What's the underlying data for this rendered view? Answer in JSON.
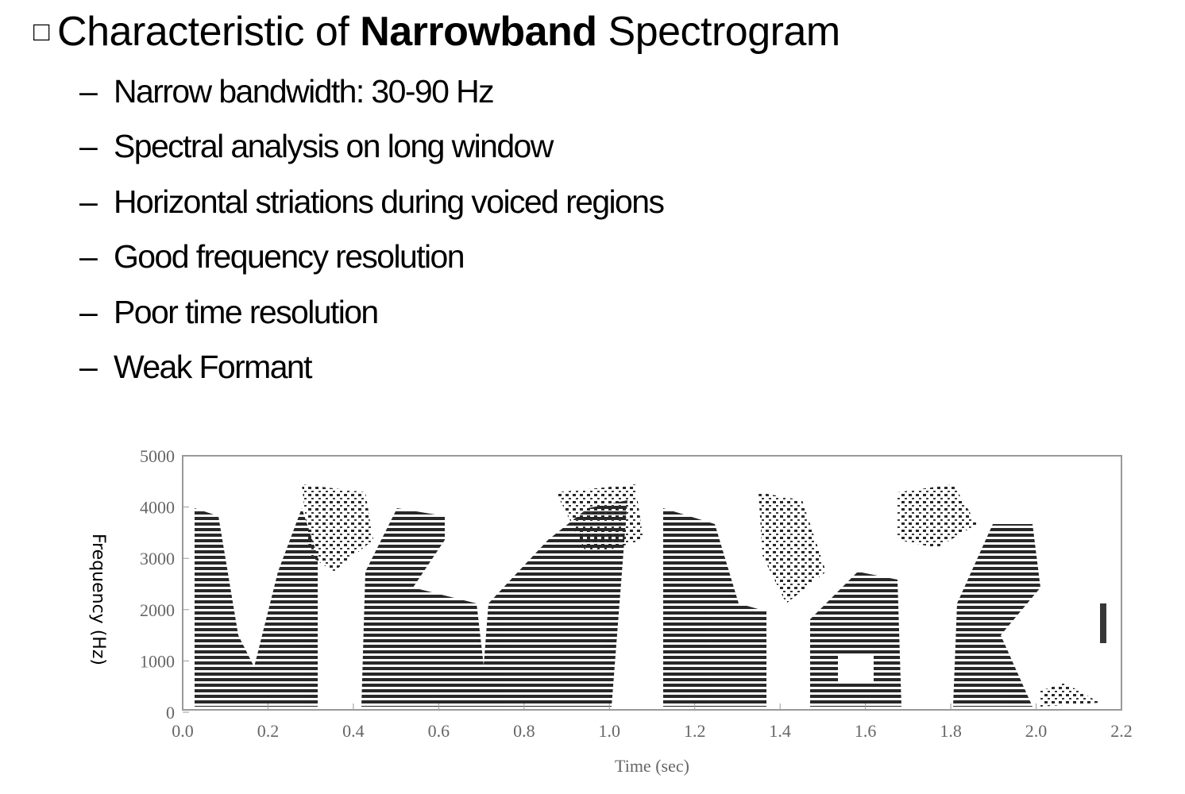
{
  "header": {
    "bullet": "□",
    "title_parts": [
      "Characteristic of ",
      "Narrowband",
      " Spectrogram"
    ]
  },
  "items": [
    "Narrow bandwidth: 30-90 Hz",
    "Spectral analysis on long window",
    "Horizontal striations during voiced regions",
    "Good frequency resolution",
    "Poor time resolution",
    "Weak Formant"
  ],
  "item_marker": "–",
  "figure": {
    "ylabel": "Frequency (Hz)",
    "xlabel": "Time (sec)",
    "yticks": [
      "0",
      "1000",
      "2000",
      "3000",
      "4000",
      "5000"
    ],
    "xticks": [
      "0.0",
      "0.2",
      "0.4",
      "0.6",
      "0.8",
      "1.0",
      "1.2",
      "1.4",
      "1.6",
      "1.8",
      "2.0",
      "2.2"
    ]
  }
}
